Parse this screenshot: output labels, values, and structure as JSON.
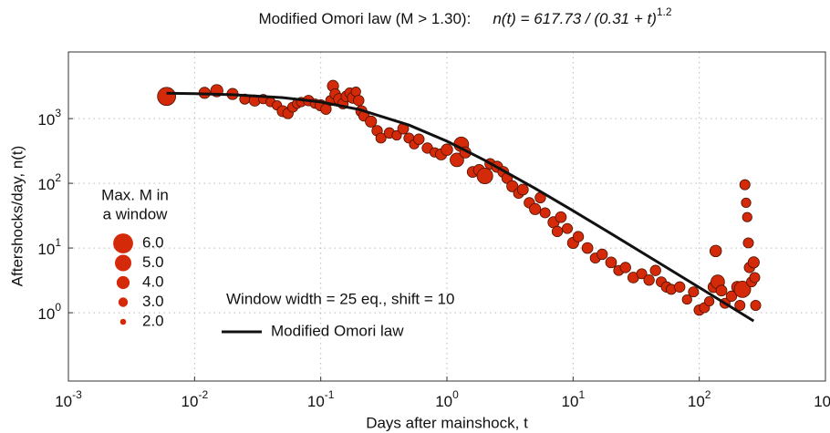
{
  "chart_data": {
    "type": "scatter",
    "title": "Modified Omori law (M > 1.30):",
    "formula": "n(t) = 617.73 / (0.31 + t)^1.2",
    "x_label": "Days after mainshock, t",
    "y_label": "Aftershocks/day, n(t)",
    "log_x": true,
    "log_y": true,
    "grid": true,
    "xlim": [
      0.001,
      1000
    ],
    "ylim": [
      0.088,
      10700
    ],
    "xticks": [
      {
        "value": 0.001,
        "label": "10^-3"
      },
      {
        "value": 0.01,
        "label": "10^-2"
      },
      {
        "value": 0.1,
        "label": "10^-1"
      },
      {
        "value": 1,
        "label": "10^0"
      },
      {
        "value": 10,
        "label": "10^1"
      },
      {
        "value": 100,
        "label": "10^2"
      },
      {
        "value": 1000,
        "label": "10^3"
      }
    ],
    "yticks": [
      {
        "value": 1,
        "label": "10^0"
      },
      {
        "value": 10,
        "label": "10^1"
      },
      {
        "value": 100,
        "label": "10^2"
      },
      {
        "value": 1000,
        "label": "10^3"
      }
    ],
    "series": [
      {
        "type": "scatter",
        "color": "#d42a0a",
        "edge_color": "#4a1200",
        "x": [
          0.006,
          0.012,
          0.015,
          0.02,
          0.025,
          0.03,
          0.035,
          0.04,
          0.045,
          0.05,
          0.055,
          0.06,
          0.065,
          0.07,
          0.08,
          0.09,
          0.1,
          0.11,
          0.12,
          0.125,
          0.13,
          0.14,
          0.15,
          0.16,
          0.17,
          0.18,
          0.19,
          0.2,
          0.21,
          0.22,
          0.25,
          0.28,
          0.3,
          0.35,
          0.4,
          0.45,
          0.5,
          0.55,
          0.6,
          0.7,
          0.8,
          0.9,
          1.0,
          1.2,
          1.3,
          1.4,
          1.6,
          1.8,
          2.0,
          2.2,
          2.5,
          2.8,
          3,
          3.3,
          3.7,
          4,
          4.5,
          5,
          5.5,
          6,
          7,
          7.5,
          8,
          9,
          10,
          11,
          13,
          15,
          17,
          20,
          23,
          26,
          30,
          35,
          40,
          45,
          50,
          55,
          60,
          70,
          80,
          90,
          100,
          110,
          120,
          130,
          135,
          140,
          150,
          160,
          180,
          200,
          210,
          220,
          230,
          235,
          240,
          245,
          250,
          260,
          270,
          275,
          280
        ],
        "values": [
          2200,
          2500,
          2700,
          2400,
          2000,
          1900,
          2000,
          1800,
          1600,
          1300,
          1200,
          1500,
          1700,
          1800,
          1900,
          1700,
          1600,
          1400,
          1900,
          3200,
          2400,
          2000,
          1700,
          2200,
          2500,
          2100,
          2600,
          1900,
          1300,
          1100,
          900,
          650,
          500,
          600,
          550,
          700,
          500,
          400,
          480,
          350,
          300,
          280,
          330,
          230,
          400,
          300,
          150,
          160,
          130,
          200,
          180,
          150,
          120,
          90,
          70,
          80,
          50,
          40,
          60,
          35,
          25,
          18,
          30,
          20,
          12,
          15,
          10,
          7,
          8,
          6,
          4.5,
          5,
          3.5,
          4,
          3.2,
          4.5,
          3,
          2.5,
          2.3,
          2.5,
          1.6,
          2.1,
          1.1,
          1.2,
          1.5,
          2.5,
          9,
          3,
          2.2,
          1.4,
          1.8,
          2.5,
          1.3,
          2.3,
          95,
          50,
          30,
          12,
          5,
          3,
          6,
          3.5,
          1.3
        ],
        "sizes": [
          5.5,
          3.5,
          3.8,
          3.5,
          3.2,
          3.5,
          3,
          3,
          3,
          3.5,
          3.3,
          3.2,
          3,
          3,
          3.3,
          3,
          3.5,
          3.3,
          3.2,
          3.5,
          3.3,
          3.5,
          3.3,
          3.4,
          3.2,
          3.5,
          3,
          3.3,
          3.5,
          3.3,
          3.5,
          3.3,
          3.2,
          3.3,
          3,
          3.4,
          3.2,
          3,
          3.3,
          3.3,
          3,
          3.5,
          3.6,
          4.2,
          4.5,
          3.5,
          3.4,
          3.5,
          4.8,
          3.3,
          3.5,
          3.4,
          3.3,
          3.5,
          3.2,
          3.4,
          3.3,
          3.5,
          3.3,
          3.2,
          3.5,
          3.3,
          3.4,
          3.2,
          3.5,
          3.3,
          3.4,
          3.2,
          3.3,
          3.4,
          3.2,
          3.3,
          3.4,
          3.2,
          3.3,
          3.3,
          3.2,
          3.3,
          3.2,
          3.3,
          3,
          3.2,
          3.3,
          3.2,
          3,
          3.5,
          3.6,
          4.2,
          3.4,
          3.2,
          3.3,
          3.5,
          3.2,
          5,
          3.2,
          3,
          3,
          3.2,
          3.3,
          3.2,
          3.5,
          3.2,
          3.2
        ]
      },
      {
        "type": "line",
        "name": "Modified Omori law",
        "color": "#111111",
        "x": [
          0.006,
          0.01,
          0.02,
          0.05,
          0.1,
          0.2,
          0.5,
          1,
          2,
          5,
          10,
          20,
          50,
          100,
          200,
          270
        ],
        "values": [
          2461,
          2424,
          2336,
          2105,
          1801,
          1386,
          795,
          447,
          226,
          83.3,
          37.6,
          16.7,
          5.61,
          2.45,
          1.07,
          0.745
        ]
      }
    ],
    "size_legend": {
      "title": [
        "Max. M in",
        "a window"
      ],
      "values": [
        6,
        5,
        4,
        3,
        2
      ],
      "value_labels": [
        "6.0",
        "5.0",
        "4.0",
        "3.0",
        "2.0"
      ]
    },
    "annotation": "Window width = 25 eq., shift = 10"
  }
}
